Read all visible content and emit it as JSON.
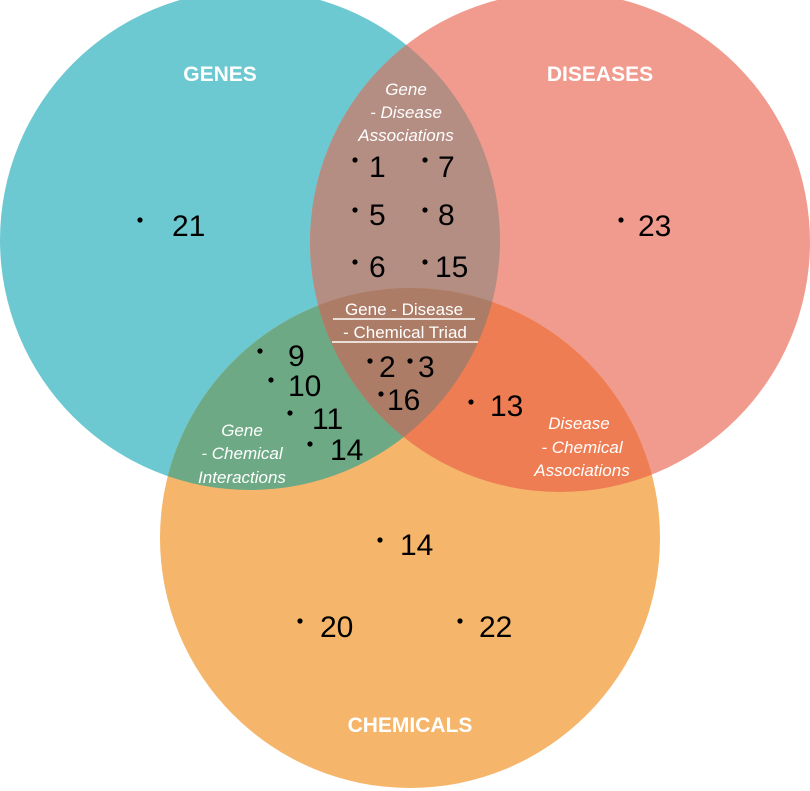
{
  "colors": {
    "genes": "#6cc8d1",
    "diseases": "#f19b8e",
    "chemicals": "#f5b56a",
    "gene_disease": "#b48d83",
    "gene_chemical": "#6ea985",
    "disease_chemical": "#ee7d53",
    "triad": "#ad7c67",
    "text_light": "#ffffff",
    "text_dark": "#000000"
  },
  "sets": {
    "genes": {
      "label": "GENES"
    },
    "diseases": {
      "label": "DISEASES"
    },
    "chemicals": {
      "label": "CHEMICALS"
    }
  },
  "regions": {
    "gene_disease": {
      "lines": [
        "Gene",
        "- Disease",
        "Associations"
      ]
    },
    "gene_chemical": {
      "lines": [
        "Gene",
        "- Chemical",
        "Interactions"
      ]
    },
    "disease_chemical": {
      "lines": [
        "Disease",
        "- Chemical",
        "Associations"
      ]
    },
    "triad": {
      "lines": [
        "Gene - Disease",
        "- Chemical Triad"
      ]
    }
  },
  "items": {
    "genes_only": [
      "21"
    ],
    "diseases_only": [
      "23"
    ],
    "chemicals_only": [
      "14",
      "20",
      "22"
    ],
    "gene_disease": [
      "1",
      "7",
      "5",
      "8",
      "6",
      "15"
    ],
    "gene_chemical": [
      "9",
      "10",
      "11",
      "14"
    ],
    "disease_chemical": [
      "13"
    ],
    "triad": [
      "2",
      "3",
      "16"
    ]
  }
}
